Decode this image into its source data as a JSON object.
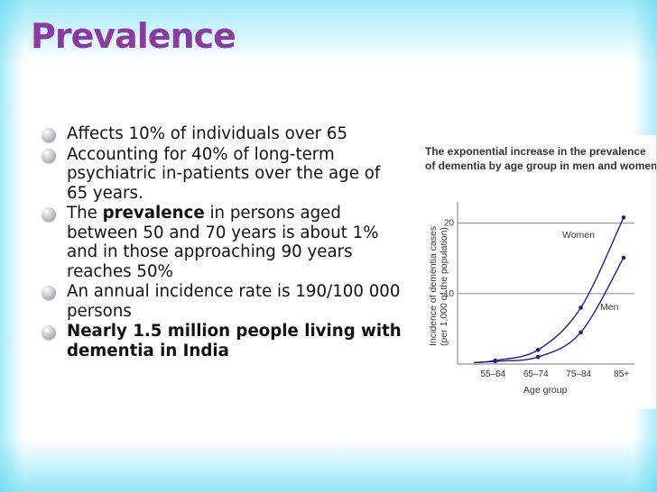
{
  "slide": {
    "title": "Prevalence",
    "colors": {
      "title": "#8a3aa0",
      "glow": "#4fd6f0",
      "curve": "#1d1f8a"
    },
    "bullets": [
      {
        "icon": "bullet-orb-icon",
        "text": "Affects 10% of individuals over 65"
      },
      {
        "icon": "bullet-orb-icon",
        "text": "Accounting for 40% of long-term psychiatric in-patients over the age of 65 years."
      },
      {
        "icon": "bullet-orb-icon",
        "before": "The ",
        "bold": "prevalence",
        "after": " in persons aged between 50 and 70 years is about 1% and in those approaching 90 years reaches 50%"
      },
      {
        "icon": "bullet-orb-icon",
        "text": "An annual incidence rate is 190/100 000 persons"
      },
      {
        "icon": "bullet-orb-icon",
        "text": "Nearly 1.5 million people living with dementia in India"
      }
    ]
  },
  "figure": {
    "title_lines": [
      "The exponential increase in the prevalence",
      "of dementia by age group in men and women"
    ]
  },
  "chart_data": {
    "type": "line",
    "title": "The exponential increase in the prevalence of dementia by age group in men and women",
    "xlabel": "Age group",
    "ylabel": [
      "Incidence of dementia cases",
      "(per 1,000 of the population)"
    ],
    "categories": [
      "55–64",
      "65–74",
      "75–84",
      "85+"
    ],
    "yticks": [
      10,
      20
    ],
    "ylim": [
      0,
      22
    ],
    "grid": "horizontal at ticks",
    "legend": "curve labels",
    "series": [
      {
        "name": "Women",
        "x": [
          55,
          60,
          70,
          80,
          90
        ],
        "values": [
          0.2,
          0.5,
          2.0,
          8.0,
          20.8
        ]
      },
      {
        "name": "Men",
        "x": [
          55,
          60,
          70,
          80,
          90
        ],
        "values": [
          0.2,
          0.4,
          1.0,
          4.5,
          15.1
        ]
      }
    ],
    "xrange": [
      55,
      90
    ]
  }
}
